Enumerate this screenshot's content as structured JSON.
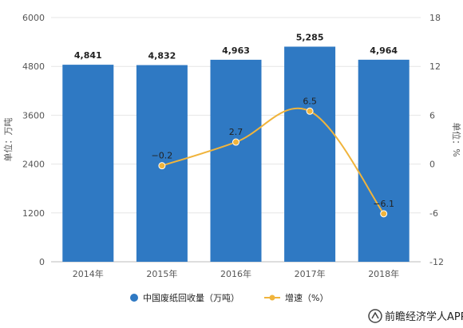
{
  "chart_data": {
    "type": "bar",
    "categories": [
      "2014年",
      "2015年",
      "2016年",
      "2017年",
      "2018年"
    ],
    "series": [
      {
        "name": "中国废纸回收量（万吨）",
        "type": "bar",
        "axis": "left",
        "values": [
          4841,
          4832,
          4963,
          5285,
          4964
        ],
        "labels": [
          "4,841",
          "4,832",
          "4,963",
          "5,285",
          "4,964"
        ]
      },
      {
        "name": "增速（%）",
        "type": "line",
        "axis": "right",
        "values": [
          null,
          -0.2,
          2.7,
          6.5,
          -6.1
        ],
        "labels": [
          "",
          "−0.2",
          "2.7",
          "6.5",
          "−6.1"
        ]
      }
    ],
    "left_axis": {
      "label": "单位：万吨",
      "ylim": [
        0,
        6000
      ],
      "ticks": [
        "0",
        "1200",
        "2400",
        "3600",
        "4800",
        "6000"
      ]
    },
    "right_axis": {
      "label": "单位：%",
      "ylim": [
        -12,
        18
      ],
      "ticks": [
        "-12",
        "-6",
        "0",
        "6",
        "12",
        "18"
      ]
    },
    "grid": true,
    "legend_position": "bottom",
    "colors": {
      "bar": "#2f79c3",
      "line": "#f0b43c",
      "grid": "#e6e6e6"
    }
  },
  "watermark": {
    "text": "前瞻经济学人APP"
  }
}
